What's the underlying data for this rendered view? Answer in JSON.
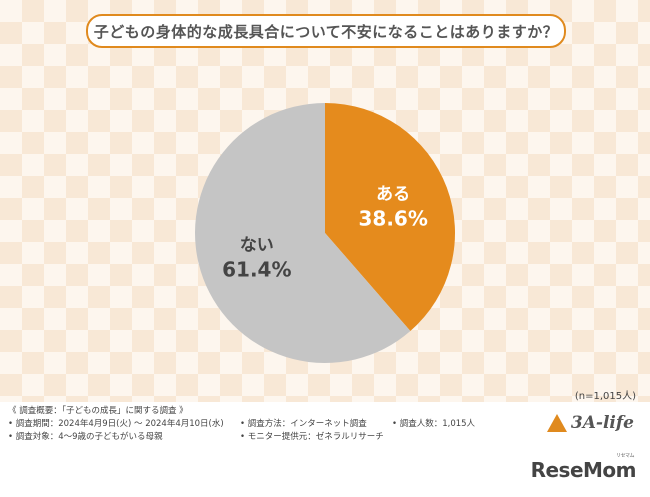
{
  "title": "子どもの身体的な成長具合について不安になることはありますか？",
  "sample_note": "(n=1,015人)",
  "colors": {
    "ある": "#e58b1d",
    "ない": "#c5c5c5",
    "accent": "#e08a1e"
  },
  "chart_data": {
    "type": "pie",
    "slices": [
      {
        "label": "ある",
        "value": 38.6,
        "display": "38.6%",
        "color": "#e58b1d"
      },
      {
        "label": "ない",
        "value": 61.4,
        "display": "61.4%",
        "color": "#c5c5c5"
      }
    ],
    "start_angle": "12 o'clock",
    "direction": "clockwise"
  },
  "footer": {
    "overview": "《 調査概要：「子どもの成長」に関する調査 》",
    "period": "• 調査期間：2024年4月9日(火) ～ 2024年4月10日(水)",
    "method": "• 調査方法：インターネット調査",
    "count": "• 調査人数：1,015人",
    "target": "• 調査対象：4～9歳の子どもがいる母親",
    "provider": "• モニター提供元：ゼネラルリサーチ"
  },
  "logos": {
    "brand": "3A-life",
    "resemom": "ReseMom",
    "resemom_kana": "リセマム"
  }
}
